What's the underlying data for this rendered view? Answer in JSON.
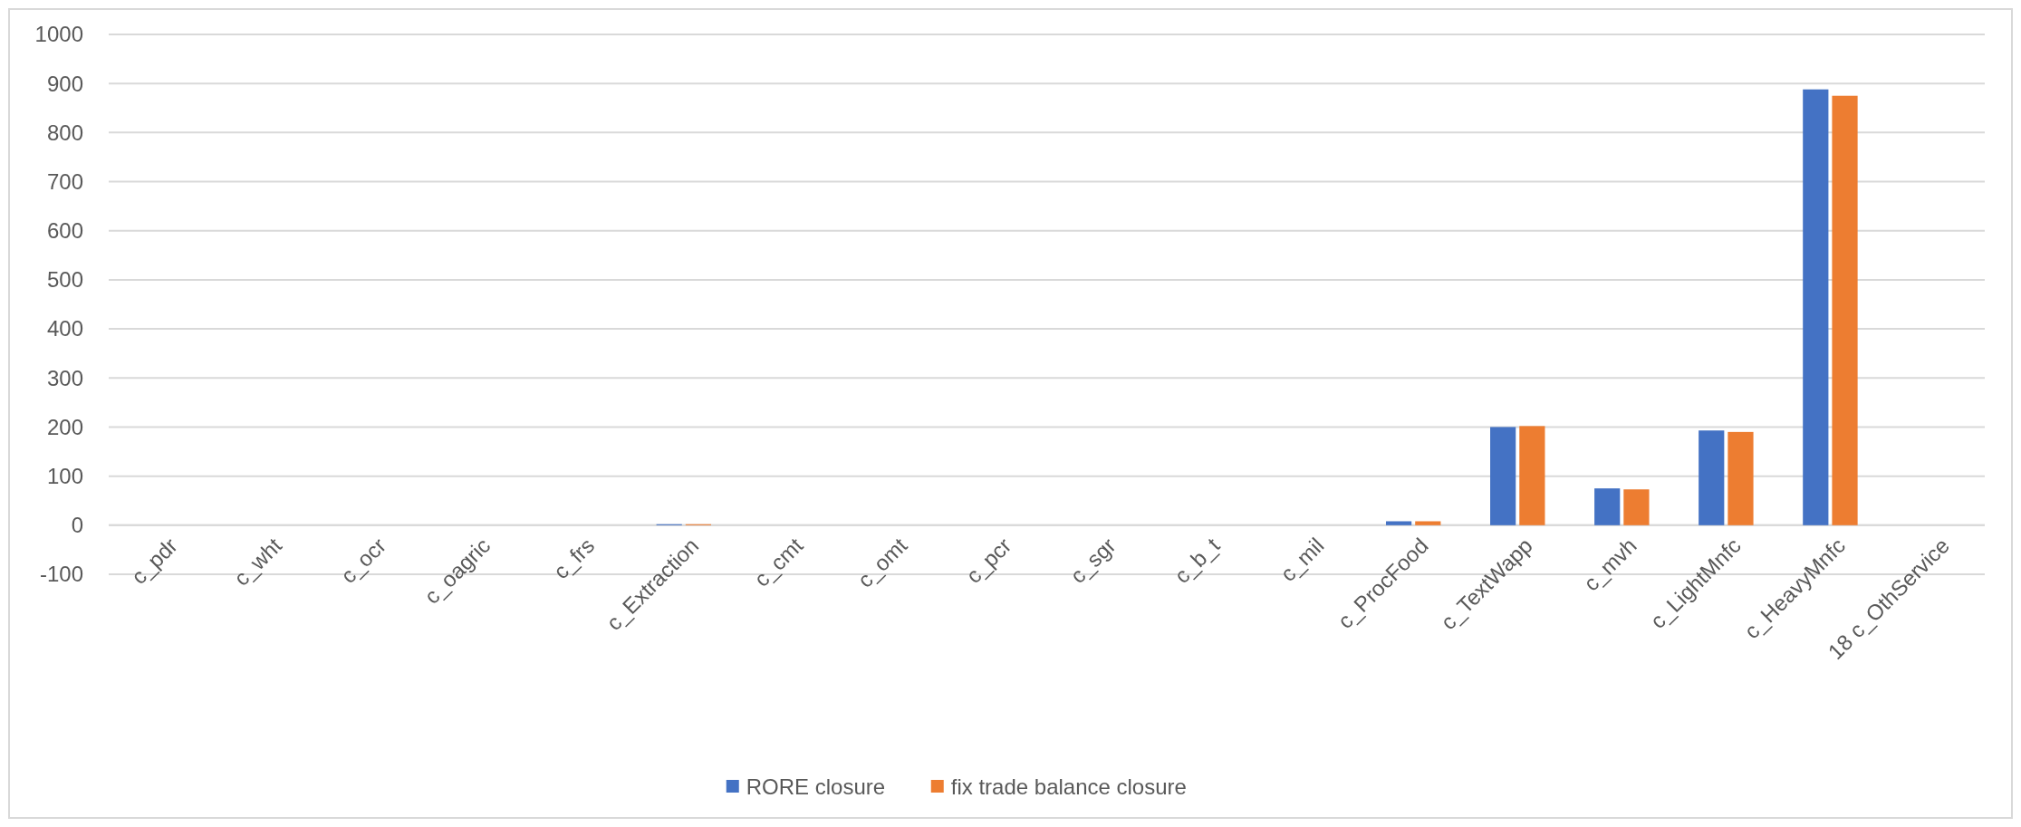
{
  "chart_data": {
    "type": "bar",
    "categories": [
      "c_pdr",
      "c_wht",
      "c_ocr",
      "c_oagric",
      "c_frs",
      "c_Extraction",
      "c_cmt",
      "c_omt",
      "c_pcr",
      "c_sgr",
      "c_b_t",
      "c_mil",
      "c_ProcFood",
      "c_TextWapp",
      "c_mvh",
      "c_LightMnfc",
      "c_HeavyMnfc",
      "18 c_OthService"
    ],
    "series": [
      {
        "name": "RORE closure",
        "color": "#4472c4",
        "values": [
          0,
          0,
          0,
          0,
          0,
          2,
          0,
          0,
          0,
          0,
          0,
          0,
          8,
          200,
          75,
          193,
          888,
          0
        ]
      },
      {
        "name": "fix trade balance closure",
        "color": "#ed7d31",
        "values": [
          0,
          0,
          0,
          0,
          0,
          2,
          0,
          0,
          0,
          0,
          0,
          0,
          8,
          202,
          73,
          190,
          875,
          0
        ]
      }
    ],
    "ylim": [
      -100,
      1000
    ],
    "yticks": [
      -100,
      0,
      100,
      200,
      300,
      400,
      500,
      600,
      700,
      800,
      900,
      1000
    ],
    "grid": "y",
    "legend": "bottom"
  }
}
